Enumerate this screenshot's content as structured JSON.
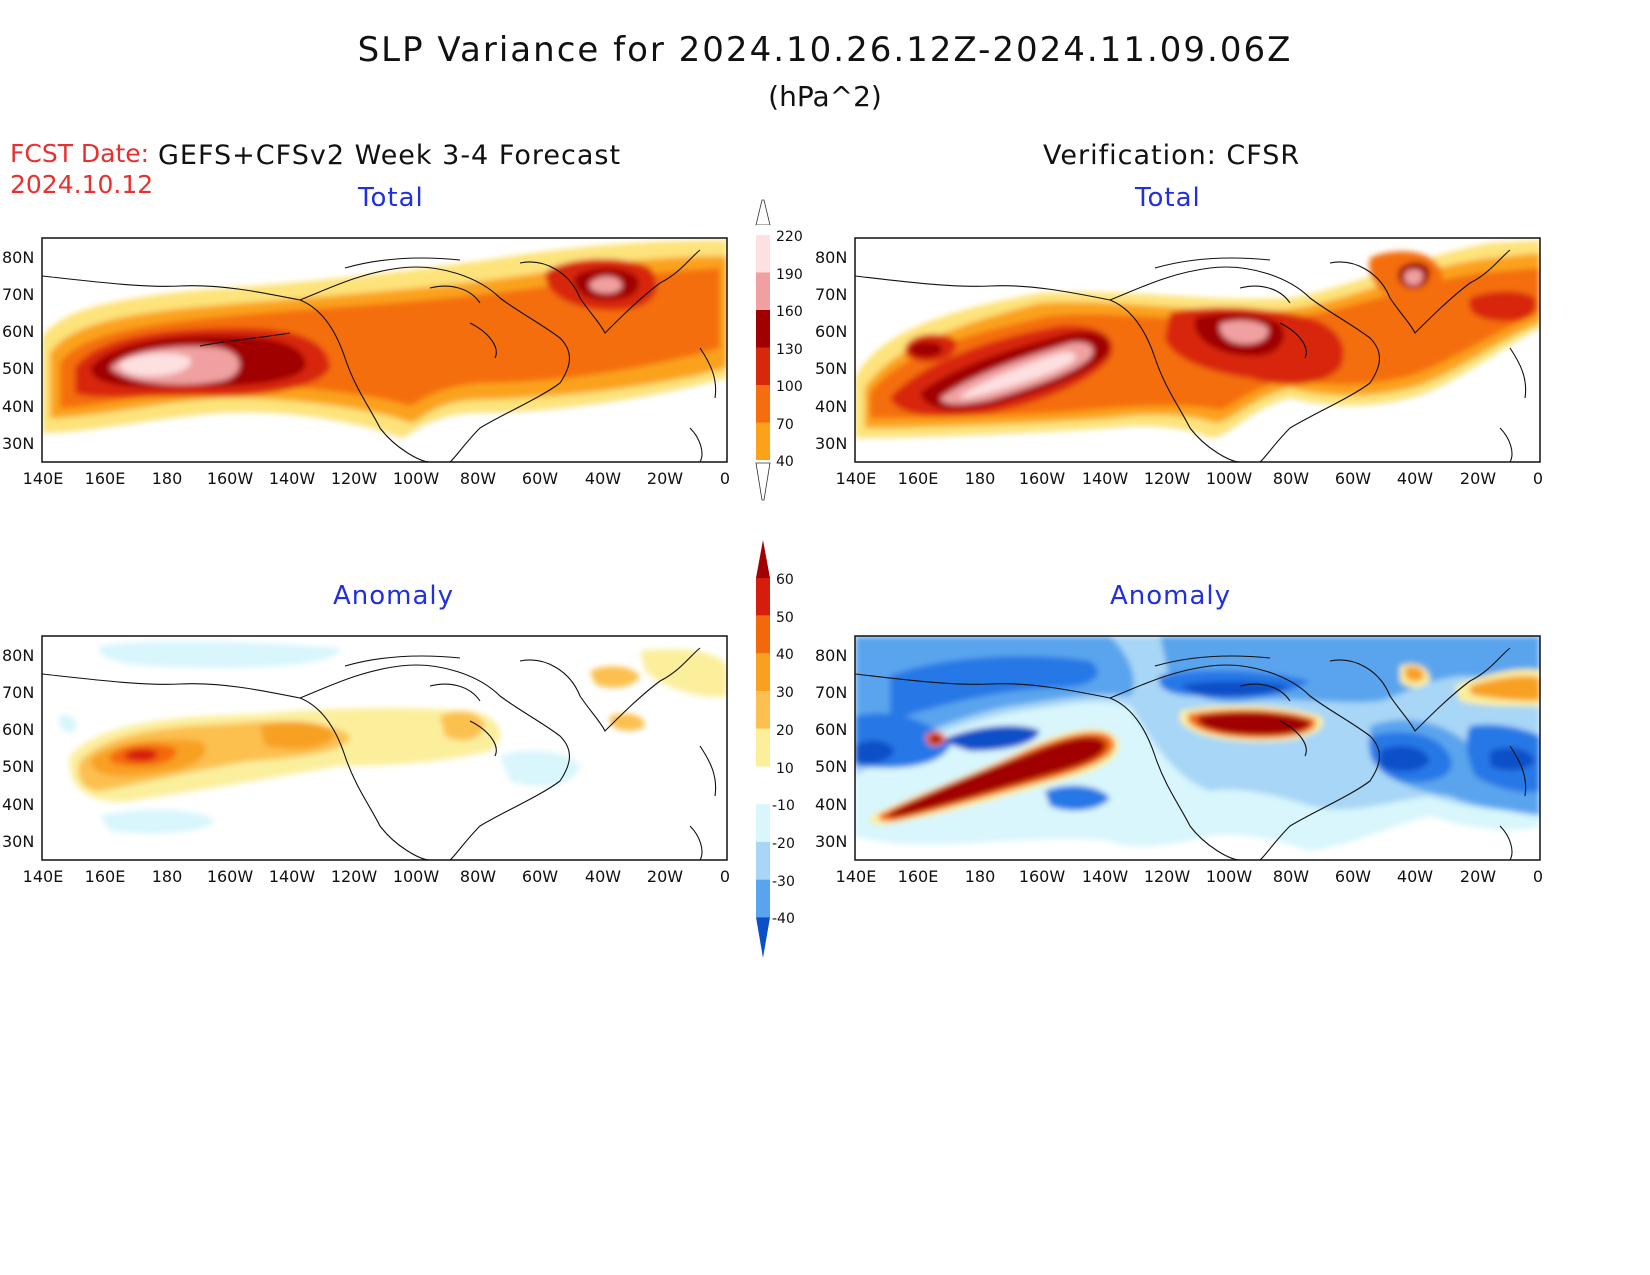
{
  "header": {
    "title": "SLP Variance for 2024.10.26.12Z-2024.11.09.06Z",
    "units": "(hPa^2)",
    "fcst_label": "FCST Date:",
    "fcst_date": "2024.10.12",
    "forecast_label": "GEFS+CFSv2 Week 3-4 Forecast",
    "verification_label": "Verification: CFSR"
  },
  "panels": {
    "forecast_total": {
      "title": "Total"
    },
    "verification_total": {
      "title": "Total"
    },
    "forecast_anomaly": {
      "title": "Anomaly"
    },
    "verification_anomaly": {
      "title": "Anomaly"
    }
  },
  "axes": {
    "lon_labels": [
      "140E",
      "160E",
      "180",
      "160W",
      "140W",
      "120W",
      "100W",
      "80W",
      "60W",
      "40W",
      "20W",
      "0"
    ],
    "lat_labels": [
      "80N",
      "70N",
      "60N",
      "50N",
      "40N",
      "30N"
    ]
  },
  "colorbars": {
    "total": {
      "labels": [
        "220",
        "190",
        "160",
        "130",
        "100",
        "70",
        "40"
      ],
      "colors": [
        "#fde0e0",
        "#f0a0a0",
        "#a00000",
        "#d8280c",
        "#f46e10",
        "#fba21a",
        "#fde37a"
      ]
    },
    "anomaly": {
      "labels": [
        "60",
        "50",
        "40",
        "30",
        "20",
        "10",
        "-10",
        "-20",
        "-30",
        "-40"
      ],
      "colors": [
        "#a00000",
        "#d61c0c",
        "#f4680c",
        "#f8a020",
        "#fcc050",
        "#fbef9c",
        "#ffffff",
        "#d8f6fc",
        "#a8d6f6",
        "#5aa4ee",
        "#2878e6",
        "#0c50c8"
      ]
    }
  }
}
